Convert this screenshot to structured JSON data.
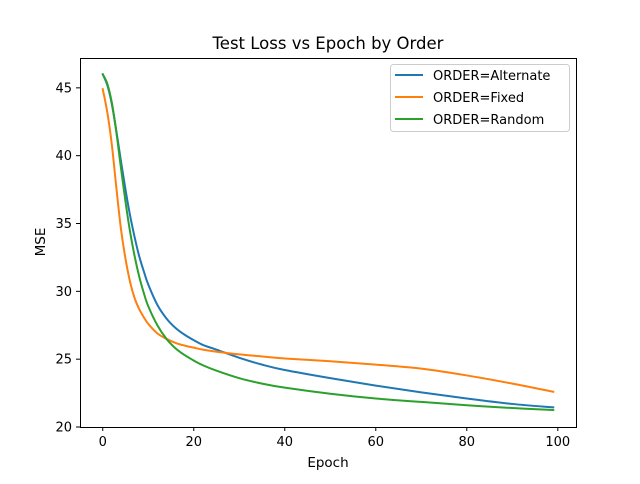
{
  "chart_data": {
    "type": "line",
    "title": "Test Loss vs Epoch by Order",
    "xlabel": "Epoch",
    "ylabel": "MSE",
    "xlim": [
      -5,
      104
    ],
    "ylim": [
      20,
      47.2
    ],
    "xticks": [
      0,
      20,
      40,
      60,
      80,
      100
    ],
    "yticks": [
      20,
      25,
      30,
      35,
      40,
      45
    ],
    "xtick_labels": [
      "0",
      "20",
      "40",
      "60",
      "80",
      "100"
    ],
    "ytick_labels": [
      "20",
      "25",
      "30",
      "35",
      "40",
      "45"
    ],
    "grid": false,
    "legend_position": "top-right",
    "x": [
      0,
      1,
      2,
      3,
      4,
      5,
      6,
      7,
      8,
      9,
      10,
      12,
      14,
      16,
      18,
      20,
      22,
      25,
      30,
      35,
      40,
      50,
      60,
      70,
      80,
      90,
      99
    ],
    "series": [
      {
        "name": "ORDER=Alternate",
        "color": "#1f77b4",
        "values": [
          46.0,
          45.2,
          43.8,
          41.8,
          39.6,
          37.5,
          35.6,
          34.0,
          32.6,
          31.5,
          30.5,
          29.0,
          28.0,
          27.3,
          26.8,
          26.4,
          26.05,
          25.7,
          25.1,
          24.6,
          24.2,
          23.6,
          23.05,
          22.55,
          22.1,
          21.7,
          21.45
        ]
      },
      {
        "name": "ORDER=Fixed",
        "color": "#ff7f0e",
        "values": [
          44.9,
          43.2,
          40.8,
          37.6,
          34.6,
          32.4,
          30.7,
          29.5,
          28.7,
          28.1,
          27.6,
          26.9,
          26.5,
          26.2,
          26.0,
          25.85,
          25.7,
          25.55,
          25.35,
          25.2,
          25.05,
          24.85,
          24.6,
          24.3,
          23.8,
          23.2,
          22.6
        ]
      },
      {
        "name": "ORDER=Random",
        "color": "#2ca02c",
        "values": [
          46.0,
          45.3,
          43.9,
          41.7,
          39.1,
          36.6,
          34.4,
          32.6,
          31.1,
          29.9,
          28.9,
          27.5,
          26.5,
          25.8,
          25.3,
          24.9,
          24.55,
          24.15,
          23.6,
          23.2,
          22.9,
          22.45,
          22.1,
          21.85,
          21.6,
          21.4,
          21.25
        ]
      }
    ]
  }
}
